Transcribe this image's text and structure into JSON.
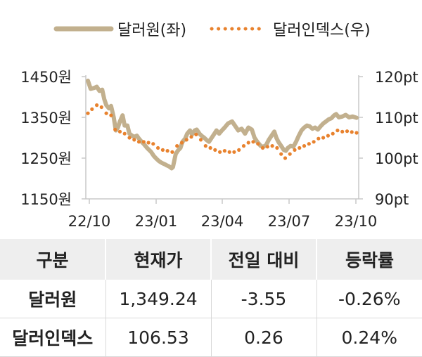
{
  "chart_data": {
    "type": "line",
    "x_ticks": [
      "22/10",
      "23/01",
      "23/04",
      "23/07",
      "23/10"
    ],
    "y_left": {
      "ticks": [
        "1450원",
        "1350원",
        "1250원",
        "1150원"
      ],
      "range": [
        1150,
        1450
      ]
    },
    "y_right": {
      "ticks": [
        "120pt",
        "110pt",
        "100pt",
        "90pt"
      ],
      "range": [
        90,
        120
      ]
    },
    "legend_position": "top",
    "x_range": [
      "2022-10-01",
      "2023-10-31"
    ],
    "series": [
      {
        "name": "달러원(좌)",
        "axis": "left",
        "style": "solid",
        "color": "#c2b08e",
        "points": [
          [
            "2022-10-01",
            1440
          ],
          [
            "2022-10-05",
            1420
          ],
          [
            "2022-10-10",
            1422
          ],
          [
            "2022-10-14",
            1425
          ],
          [
            "2022-10-18",
            1415
          ],
          [
            "2022-10-22",
            1418
          ],
          [
            "2022-10-25",
            1395
          ],
          [
            "2022-10-28",
            1380
          ],
          [
            "2022-11-01",
            1372
          ],
          [
            "2022-11-04",
            1378
          ],
          [
            "2022-11-08",
            1350
          ],
          [
            "2022-11-11",
            1318
          ],
          [
            "2022-11-14",
            1325
          ],
          [
            "2022-11-17",
            1340
          ],
          [
            "2022-11-21",
            1355
          ],
          [
            "2022-11-24",
            1330
          ],
          [
            "2022-11-28",
            1330
          ],
          [
            "2022-12-01",
            1310
          ],
          [
            "2022-12-05",
            1305
          ],
          [
            "2022-12-08",
            1302
          ],
          [
            "2022-12-12",
            1305
          ],
          [
            "2022-12-15",
            1298
          ],
          [
            "2022-12-19",
            1290
          ],
          [
            "2022-12-22",
            1285
          ],
          [
            "2022-12-27",
            1275
          ],
          [
            "2023-01-02",
            1265
          ],
          [
            "2023-01-06",
            1255
          ],
          [
            "2023-01-10",
            1248
          ],
          [
            "2023-01-14",
            1242
          ],
          [
            "2023-01-18",
            1238
          ],
          [
            "2023-01-22",
            1235
          ],
          [
            "2023-01-25",
            1232
          ],
          [
            "2023-01-28",
            1230
          ],
          [
            "2023-02-01",
            1225
          ],
          [
            "2023-02-03",
            1228
          ],
          [
            "2023-02-07",
            1260
          ],
          [
            "2023-02-10",
            1268
          ],
          [
            "2023-02-14",
            1275
          ],
          [
            "2023-02-17",
            1290
          ],
          [
            "2023-02-21",
            1298
          ],
          [
            "2023-02-24",
            1310
          ],
          [
            "2023-02-28",
            1318
          ],
          [
            "2023-03-03",
            1308
          ],
          [
            "2023-03-07",
            1318
          ],
          [
            "2023-03-10",
            1320
          ],
          [
            "2023-03-14",
            1310
          ],
          [
            "2023-03-17",
            1305
          ],
          [
            "2023-03-21",
            1300
          ],
          [
            "2023-03-24",
            1295
          ],
          [
            "2023-03-28",
            1290
          ],
          [
            "2023-04-01",
            1300
          ],
          [
            "2023-04-05",
            1310
          ],
          [
            "2023-04-08",
            1318
          ],
          [
            "2023-04-12",
            1310
          ],
          [
            "2023-04-16",
            1318
          ],
          [
            "2023-04-20",
            1325
          ],
          [
            "2023-04-25",
            1335
          ],
          [
            "2023-05-01",
            1340
          ],
          [
            "2023-05-05",
            1330
          ],
          [
            "2023-05-10",
            1318
          ],
          [
            "2023-05-15",
            1322
          ],
          [
            "2023-05-20",
            1310
          ],
          [
            "2023-05-25",
            1325
          ],
          [
            "2023-05-30",
            1320
          ],
          [
            "2023-06-03",
            1300
          ],
          [
            "2023-06-07",
            1290
          ],
          [
            "2023-06-12",
            1280
          ],
          [
            "2023-06-16",
            1278
          ],
          [
            "2023-06-20",
            1282
          ],
          [
            "2023-06-24",
            1295
          ],
          [
            "2023-06-28",
            1305
          ],
          [
            "2023-07-02",
            1315
          ],
          [
            "2023-07-05",
            1300
          ],
          [
            "2023-07-08",
            1290
          ],
          [
            "2023-07-12",
            1280
          ],
          [
            "2023-07-16",
            1270
          ],
          [
            "2023-07-19",
            1268
          ],
          [
            "2023-07-22",
            1275
          ],
          [
            "2023-07-26",
            1280
          ],
          [
            "2023-07-30",
            1278
          ],
          [
            "2023-08-03",
            1290
          ],
          [
            "2023-08-07",
            1305
          ],
          [
            "2023-08-11",
            1318
          ],
          [
            "2023-08-15",
            1325
          ],
          [
            "2023-08-19",
            1330
          ],
          [
            "2023-08-23",
            1328
          ],
          [
            "2023-08-27",
            1322
          ],
          [
            "2023-08-31",
            1325
          ],
          [
            "2023-09-04",
            1320
          ],
          [
            "2023-09-08",
            1328
          ],
          [
            "2023-09-12",
            1335
          ],
          [
            "2023-09-16",
            1340
          ],
          [
            "2023-09-20",
            1345
          ],
          [
            "2023-09-24",
            1348
          ],
          [
            "2023-09-28",
            1355
          ],
          [
            "2023-10-01",
            1358
          ],
          [
            "2023-10-05",
            1350
          ],
          [
            "2023-10-10",
            1352
          ],
          [
            "2023-10-15",
            1356
          ],
          [
            "2023-10-20",
            1350
          ],
          [
            "2023-10-25",
            1352
          ],
          [
            "2023-10-31",
            1349
          ]
        ]
      },
      {
        "name": "달러인덱스(우)",
        "axis": "right",
        "style": "dotted",
        "color": "#e8822e",
        "points": [
          [
            "2022-10-01",
            111
          ],
          [
            "2022-10-07",
            112
          ],
          [
            "2022-10-14",
            113
          ],
          [
            "2022-10-21",
            112.5
          ],
          [
            "2022-10-28",
            111
          ],
          [
            "2022-11-04",
            110.5
          ],
          [
            "2022-11-10",
            107
          ],
          [
            "2022-11-17",
            106.5
          ],
          [
            "2022-11-24",
            106
          ],
          [
            "2022-12-01",
            105
          ],
          [
            "2022-12-08",
            104.5
          ],
          [
            "2022-12-15",
            104
          ],
          [
            "2022-12-22",
            104
          ],
          [
            "2022-12-29",
            103.8
          ],
          [
            "2023-01-05",
            103.5
          ],
          [
            "2023-01-12",
            102.5
          ],
          [
            "2023-01-19",
            102
          ],
          [
            "2023-01-26",
            101.8
          ],
          [
            "2023-02-02",
            101.5
          ],
          [
            "2023-02-09",
            103
          ],
          [
            "2023-02-16",
            103.8
          ],
          [
            "2023-02-23",
            104.5
          ],
          [
            "2023-03-02",
            105.2
          ],
          [
            "2023-03-09",
            105.8
          ],
          [
            "2023-03-16",
            104.5
          ],
          [
            "2023-03-23",
            103
          ],
          [
            "2023-03-30",
            102.5
          ],
          [
            "2023-04-06",
            102
          ],
          [
            "2023-04-13",
            101.5
          ],
          [
            "2023-04-20",
            101.8
          ],
          [
            "2023-04-27",
            101.5
          ],
          [
            "2023-05-04",
            101.5
          ],
          [
            "2023-05-11",
            102
          ],
          [
            "2023-05-18",
            103
          ],
          [
            "2023-05-25",
            103.8
          ],
          [
            "2023-06-01",
            104
          ],
          [
            "2023-06-08",
            103.5
          ],
          [
            "2023-06-15",
            102.5
          ],
          [
            "2023-06-22",
            102.8
          ],
          [
            "2023-06-29",
            103
          ],
          [
            "2023-07-06",
            102.5
          ],
          [
            "2023-07-12",
            101
          ],
          [
            "2023-07-18",
            100
          ],
          [
            "2023-07-25",
            101
          ],
          [
            "2023-08-01",
            102
          ],
          [
            "2023-08-08",
            102.5
          ],
          [
            "2023-08-15",
            103
          ],
          [
            "2023-08-22",
            103.5
          ],
          [
            "2023-08-29",
            104
          ],
          [
            "2023-09-05",
            104.8
          ],
          [
            "2023-09-12",
            105
          ],
          [
            "2023-09-19",
            105.5
          ],
          [
            "2023-09-26",
            106
          ],
          [
            "2023-10-03",
            106.8
          ],
          [
            "2023-10-10",
            106.5
          ],
          [
            "2023-10-17",
            106.6
          ],
          [
            "2023-10-24",
            106.4
          ],
          [
            "2023-10-31",
            106.2
          ]
        ]
      }
    ]
  },
  "table": {
    "headers": [
      "구분",
      "현재가",
      "전일 대비",
      "등락률"
    ],
    "rows": [
      {
        "label": "달러원",
        "price": "1,349.24",
        "change": "-3.55",
        "rate": "-0.26%"
      },
      {
        "label": "달러인덱스",
        "price": "106.53",
        "change": "0.26",
        "rate": "0.24%"
      }
    ]
  }
}
